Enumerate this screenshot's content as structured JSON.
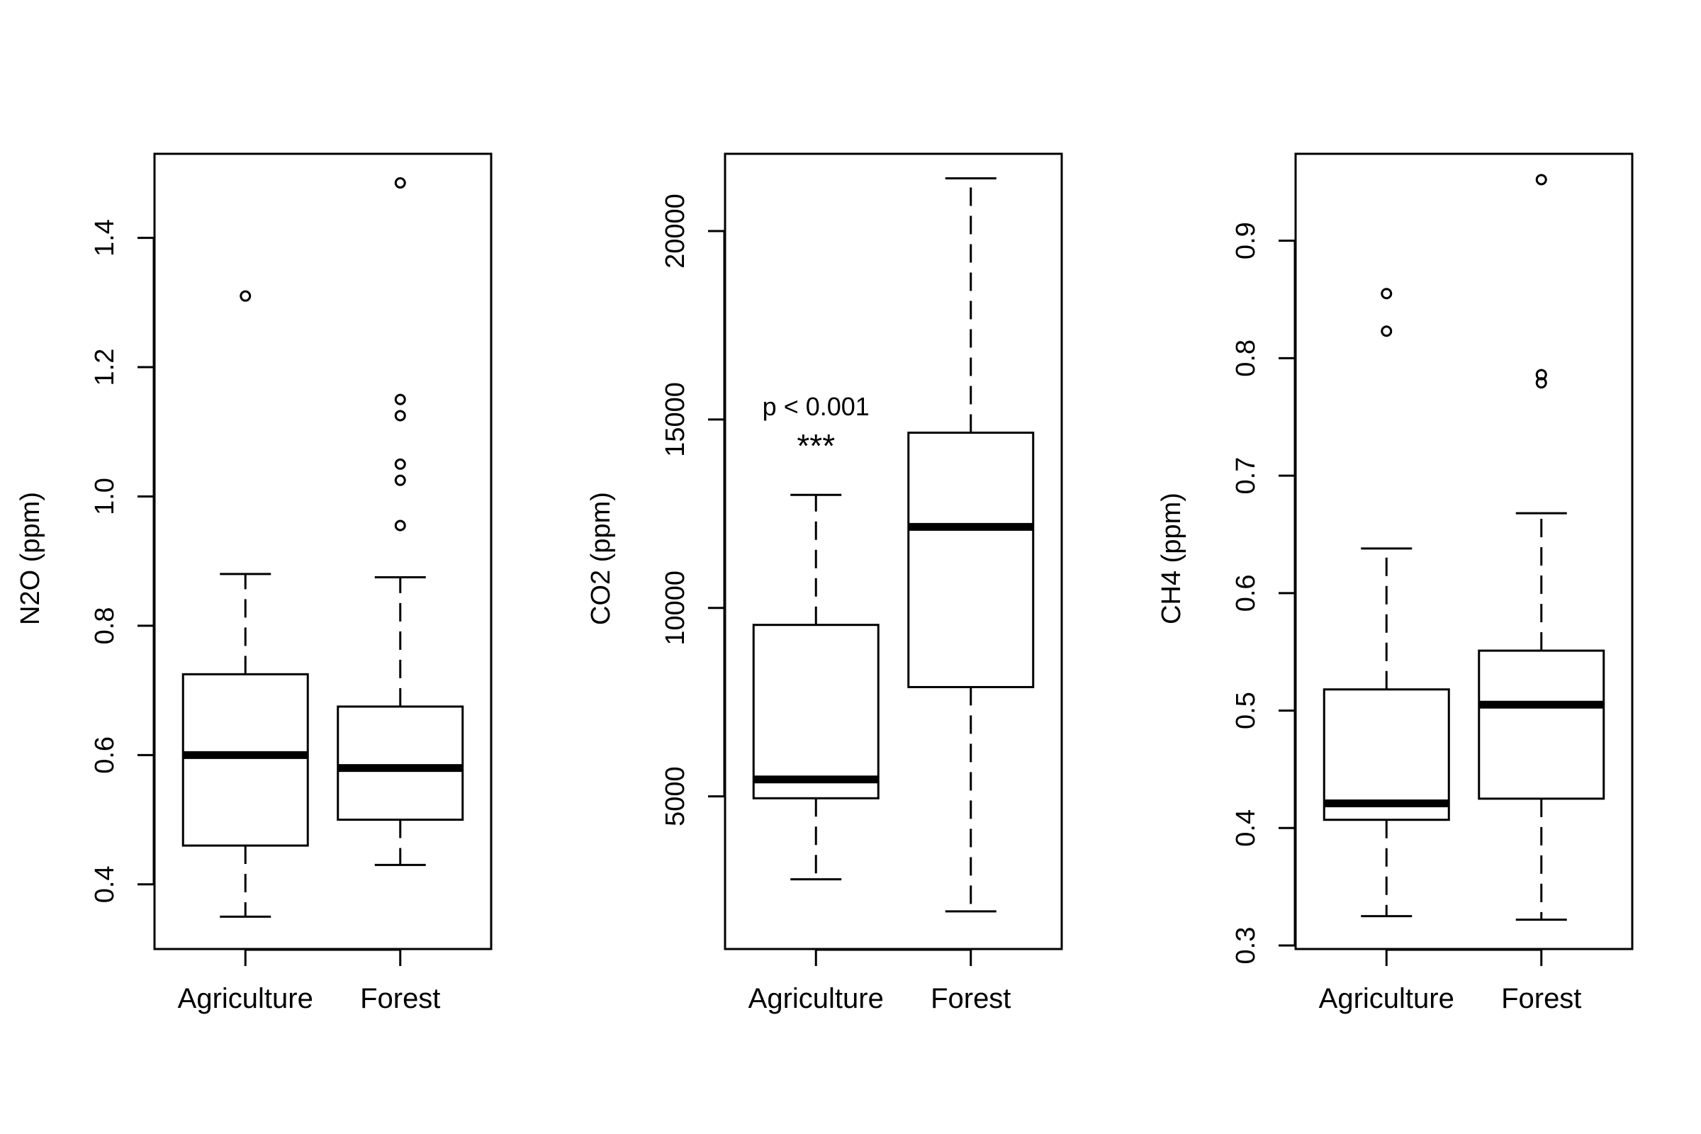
{
  "chart_data": [
    {
      "type": "boxplot",
      "ylabel": "N2O (ppm)",
      "categories": [
        "Agriculture",
        "Forest"
      ],
      "yticks": [
        0.4,
        0.6,
        0.8,
        1.0,
        1.2,
        1.4
      ],
      "ytick_labels": [
        "0.4",
        "0.6",
        "0.8",
        "1.0",
        "1.2",
        "1.4"
      ],
      "ylim": [
        0.3,
        1.53
      ],
      "boxes": [
        {
          "category": "Agriculture",
          "whisker_low": 0.35,
          "q1": 0.46,
          "median": 0.6,
          "q3": 0.725,
          "whisker_high": 0.88,
          "outliers": [
            1.31
          ]
        },
        {
          "category": "Forest",
          "whisker_low": 0.43,
          "q1": 0.5,
          "median": 0.58,
          "q3": 0.675,
          "whisker_high": 0.875,
          "outliers": [
            0.955,
            1.025,
            1.05,
            1.125,
            1.15,
            1.485
          ]
        }
      ],
      "annotations": []
    },
    {
      "type": "boxplot",
      "ylabel": "CO2 (ppm)",
      "categories": [
        "Agriculture",
        "Forest"
      ],
      "yticks": [
        5000,
        10000,
        15000,
        20000
      ],
      "ytick_labels": [
        "5000",
        "10000",
        "15000",
        "20000"
      ],
      "ylim": [
        950,
        22050
      ],
      "boxes": [
        {
          "category": "Agriculture",
          "whisker_low": 2800,
          "q1": 4950,
          "median": 5450,
          "q3": 9550,
          "whisker_high": 13000,
          "outliers": []
        },
        {
          "category": "Forest",
          "whisker_low": 1950,
          "q1": 7900,
          "median": 12150,
          "q3": 14650,
          "whisker_high": 21400,
          "outliers": []
        }
      ],
      "annotations": [
        {
          "text": "p < 0.001",
          "category": "Agriculture",
          "y": 15350
        },
        {
          "text": "***",
          "category": "Agriculture",
          "y": 14300
        }
      ]
    },
    {
      "type": "boxplot",
      "ylabel": "CH4 (ppm)",
      "categories": [
        "Agriculture",
        "Forest"
      ],
      "yticks": [
        0.3,
        0.4,
        0.5,
        0.6,
        0.7,
        0.8,
        0.9
      ],
      "ytick_labels": [
        "0.3",
        "0.4",
        "0.5",
        "0.6",
        "0.7",
        "0.8",
        "0.9"
      ],
      "ylim": [
        0.297,
        0.974
      ],
      "boxes": [
        {
          "category": "Agriculture",
          "whisker_low": 0.325,
          "q1": 0.407,
          "median": 0.421,
          "q3": 0.518,
          "whisker_high": 0.638,
          "outliers": [
            0.823,
            0.855
          ]
        },
        {
          "category": "Forest",
          "whisker_low": 0.322,
          "q1": 0.425,
          "median": 0.505,
          "q3": 0.551,
          "whisker_high": 0.668,
          "outliers": [
            0.779,
            0.786,
            0.952
          ]
        }
      ],
      "annotations": []
    }
  ]
}
